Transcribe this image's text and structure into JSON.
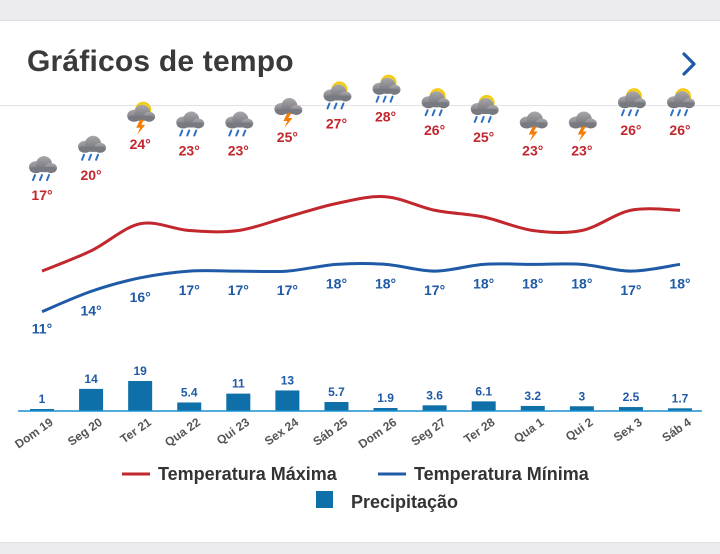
{
  "header": {
    "title": "Gráficos de tempo"
  },
  "colors": {
    "max": "#c1272d",
    "min": "#1f5aa6",
    "precip": "#0f6fa8",
    "bar_edge": "#1a8fd0"
  },
  "chart_data": {
    "type": "line",
    "title": "Gráficos de tempo",
    "categories": [
      "Dom 19",
      "Seg 20",
      "Ter 21",
      "Qua 22",
      "Qui 23",
      "Sex 24",
      "Sáb 25",
      "Dom 26",
      "Seg 27",
      "Ter 28",
      "Qua 1",
      "Qui 2",
      "Sex 3",
      "Sáb 4"
    ],
    "weather_icons": [
      "rain-cloud-icon",
      "rain-cloud-icon",
      "sun-thunder-icon",
      "rain-cloud-icon",
      "rain-cloud-icon",
      "thunder-cloud-icon",
      "sun-rain-icon",
      "sun-rain-icon",
      "sun-rain-icon",
      "sun-rain-icon",
      "thunder-cloud-icon",
      "thunder-cloud-icon",
      "sun-rain-icon",
      "sun-rain-icon"
    ],
    "series": [
      {
        "name": "Temperatura Máxima",
        "unit": "°",
        "values": [
          17,
          20,
          24,
          23,
          23,
          25,
          27,
          28,
          26,
          25,
          23,
          23,
          26,
          26
        ]
      },
      {
        "name": "Temperatura Mínima",
        "unit": "°",
        "values": [
          11,
          14,
          16,
          17,
          17,
          17,
          18,
          18,
          17,
          18,
          18,
          18,
          17,
          18
        ]
      },
      {
        "name": "Precipitação",
        "type": "bar",
        "values": [
          1,
          14,
          19,
          5.4,
          11,
          13,
          5.7,
          1.9,
          3.6,
          6.1,
          3.2,
          3,
          2.5,
          1.7
        ]
      }
    ],
    "legend": [
      "Temperatura Máxima",
      "Temperatura Mínima",
      "Precipitação"
    ],
    "legend_position": "bottom",
    "grid": false
  }
}
